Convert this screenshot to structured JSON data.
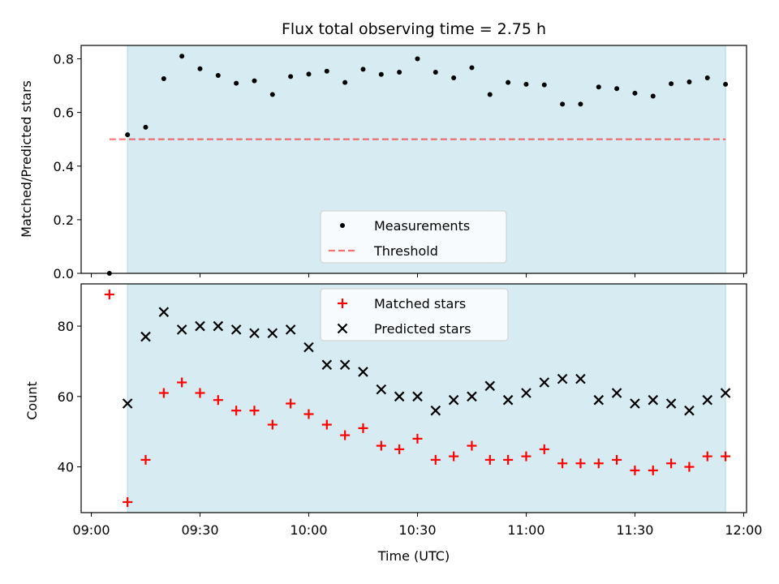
{
  "chart_data": {
    "title": "Flux total observing time = 2.75 h",
    "xlabel": "Time (UTC)",
    "x_ticks": [
      "09:00",
      "09:30",
      "10:00",
      "10:30",
      "11:00",
      "11:30",
      "12:00"
    ],
    "observing_window": {
      "start": "09:10",
      "end": "11:55",
      "color": "#add8e6"
    },
    "panels": [
      {
        "type": "scatter",
        "ylabel": "Matched/Predicted stars",
        "ylim": [
          0,
          0.85
        ],
        "y_ticks": [
          "0.0",
          "0.2",
          "0.4",
          "0.6",
          "0.8"
        ],
        "legend_position": "bottom-center",
        "series": [
          {
            "name": "Measurements",
            "marker": "dot",
            "color": "#000000",
            "x": [
              "09:05",
              "09:10",
              "09:15",
              "09:20",
              "09:25",
              "09:30",
              "09:35",
              "09:40",
              "09:45",
              "09:50",
              "09:55",
              "10:00",
              "10:05",
              "10:10",
              "10:15",
              "10:20",
              "10:25",
              "10:30",
              "10:35",
              "10:40",
              "10:45",
              "10:50",
              "10:55",
              "11:00",
              "11:05",
              "11:10",
              "11:15",
              "11:20",
              "11:25",
              "11:30",
              "11:35",
              "11:40",
              "11:45",
              "11:50",
              "11:55"
            ],
            "y": [
              0.0,
              0.517,
              0.545,
              0.726,
              0.81,
              0.763,
              0.738,
              0.709,
              0.718,
              0.667,
              0.734,
              0.743,
              0.754,
              0.712,
              0.761,
              0.742,
              0.75,
              0.8,
              0.75,
              0.729,
              0.767,
              0.667,
              0.712,
              0.705,
              0.703,
              0.631,
              0.631,
              0.695,
              0.689,
              0.672,
              0.661,
              0.707,
              0.714,
              0.729,
              0.705
            ]
          },
          {
            "name": "Threshold",
            "marker": "dashed-line",
            "color": "#ff0000",
            "x": [
              "09:05",
              "11:55"
            ],
            "y": [
              0.5,
              0.5
            ]
          }
        ]
      },
      {
        "type": "scatter",
        "ylabel": "Count",
        "ylim": [
          27,
          92
        ],
        "y_ticks": [
          "40",
          "60",
          "80"
        ],
        "legend_position": "top-center",
        "series": [
          {
            "name": "Matched stars",
            "marker": "plus",
            "color": "#ff0000",
            "x": [
              "09:05",
              "09:10",
              "09:15",
              "09:20",
              "09:25",
              "09:30",
              "09:35",
              "09:40",
              "09:45",
              "09:50",
              "09:55",
              "10:00",
              "10:05",
              "10:10",
              "10:15",
              "10:20",
              "10:25",
              "10:30",
              "10:35",
              "10:40",
              "10:45",
              "10:50",
              "10:55",
              "11:00",
              "11:05",
              "11:10",
              "11:15",
              "11:20",
              "11:25",
              "11:30",
              "11:35",
              "11:40",
              "11:45",
              "11:50",
              "11:55"
            ],
            "y": [
              89,
              30,
              42,
              61,
              64,
              61,
              59,
              56,
              56,
              52,
              58,
              55,
              52,
              49,
              51,
              46,
              45,
              48,
              42,
              43,
              46,
              42,
              42,
              43,
              45,
              41,
              41,
              41,
              42,
              39,
              39,
              41,
              40,
              43,
              43
            ]
          },
          {
            "name": "Predicted stars",
            "marker": "x",
            "color": "#000000",
            "x": [
              "09:10",
              "09:15",
              "09:20",
              "09:25",
              "09:30",
              "09:35",
              "09:40",
              "09:45",
              "09:50",
              "09:55",
              "10:00",
              "10:05",
              "10:10",
              "10:15",
              "10:20",
              "10:25",
              "10:30",
              "10:35",
              "10:40",
              "10:45",
              "10:50",
              "10:55",
              "11:00",
              "11:05",
              "11:10",
              "11:15",
              "11:20",
              "11:25",
              "11:30",
              "11:35",
              "11:40",
              "11:45",
              "11:50",
              "11:55"
            ],
            "y": [
              58,
              77,
              84,
              79,
              80,
              80,
              79,
              78,
              78,
              79,
              74,
              69,
              69,
              67,
              62,
              60,
              60,
              56,
              59,
              60,
              63,
              59,
              61,
              64,
              65,
              65,
              59,
              61,
              58,
              59,
              58,
              56,
              59,
              61
            ]
          }
        ]
      }
    ]
  }
}
